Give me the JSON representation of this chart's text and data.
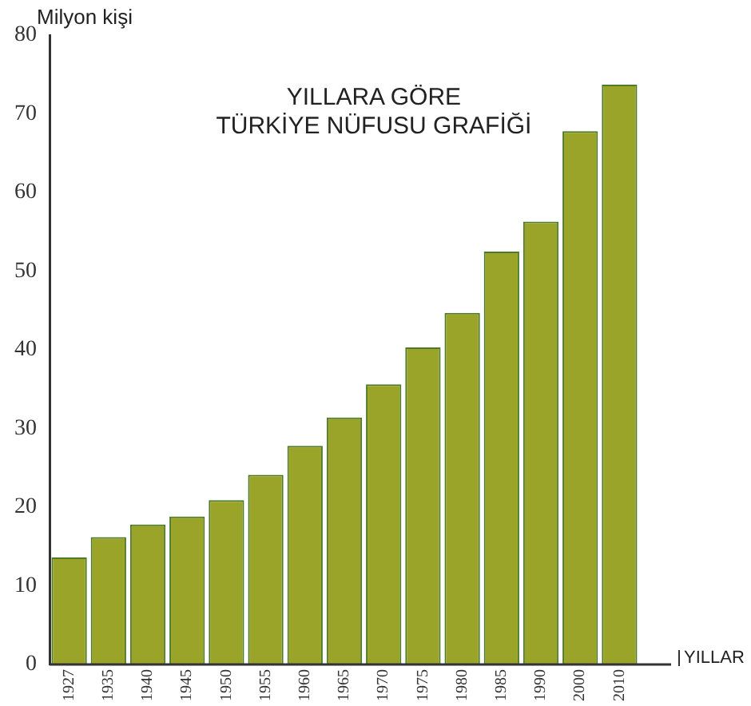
{
  "chart_data": {
    "type": "bar",
    "title": "YILLARA GÖRE\nTÜRKİYE NÜFUSU GRAFİĞİ",
    "ylabel": "Milyon kişi",
    "xlabel": "YILLAR",
    "categories": [
      "1927",
      "1935",
      "1940",
      "1945",
      "1950",
      "1955",
      "1960",
      "1965",
      "1970",
      "1975",
      "1980",
      "1985",
      "1990",
      "2000",
      "2010"
    ],
    "values": [
      13.6,
      16.2,
      17.8,
      18.8,
      20.9,
      24.1,
      27.8,
      31.4,
      35.6,
      40.3,
      44.7,
      52.5,
      56.3,
      67.8,
      73.7
    ],
    "color": "#9aa428",
    "ylim": [
      0,
      80
    ],
    "yticks": [
      0,
      10,
      20,
      30,
      40,
      50,
      60,
      70,
      80
    ],
    "grid": false,
    "legend": false
  }
}
